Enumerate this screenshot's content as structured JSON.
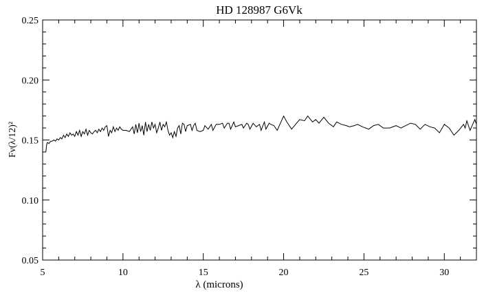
{
  "chart_data": {
    "type": "line",
    "title": "HD 128987 G6Vk",
    "xlabel": "λ (microns)",
    "ylabel": "Fν(λ/12)²",
    "xlim": [
      5,
      32
    ],
    "ylim": [
      0.05,
      0.25
    ],
    "xticks": [
      5,
      10,
      15,
      20,
      25,
      30
    ],
    "xtick_labels": [
      "5",
      "10",
      "15",
      "20",
      "25",
      "30"
    ],
    "yticks": [
      0.05,
      0.1,
      0.15,
      0.2,
      0.25
    ],
    "ytick_labels": [
      "0.05",
      "0.10",
      "0.15",
      "0.20",
      "0.25"
    ],
    "grid": false,
    "line_color": "#000000",
    "x": [
      5.2,
      5.25,
      5.3,
      5.4,
      5.5,
      5.6,
      5.7,
      5.8,
      5.9,
      6.0,
      6.1,
      6.2,
      6.3,
      6.4,
      6.5,
      6.6,
      6.7,
      6.8,
      6.9,
      7.0,
      7.1,
      7.2,
      7.3,
      7.4,
      7.5,
      7.6,
      7.7,
      7.8,
      7.9,
      8.0,
      8.1,
      8.2,
      8.3,
      8.4,
      8.5,
      8.6,
      8.7,
      8.8,
      8.9,
      9.0,
      9.1,
      9.2,
      9.3,
      9.4,
      9.5,
      9.6,
      9.7,
      9.8,
      9.9,
      10.0,
      10.2,
      10.4,
      10.5,
      10.6,
      10.7,
      10.8,
      10.9,
      11.0,
      11.1,
      11.2,
      11.3,
      11.4,
      11.5,
      11.6,
      11.7,
      11.8,
      11.9,
      12.0,
      12.1,
      12.2,
      12.3,
      12.4,
      12.5,
      12.6,
      12.7,
      12.8,
      12.9,
      13.0,
      13.1,
      13.2,
      13.3,
      13.4,
      13.5,
      13.6,
      13.7,
      13.8,
      13.9,
      14.0,
      14.2,
      14.3,
      14.4,
      14.5,
      14.6,
      14.8,
      15.0,
      15.1,
      15.3,
      15.5,
      15.6,
      15.8,
      16.0,
      16.2,
      16.3,
      16.5,
      16.6,
      16.7,
      16.9,
      17.0,
      17.2,
      17.4,
      17.5,
      17.7,
      17.8,
      17.9,
      18.1,
      18.3,
      18.5,
      18.6,
      18.8,
      18.9,
      19.1,
      19.2,
      19.4,
      19.6,
      19.8,
      20.0,
      20.2,
      20.5,
      20.8,
      21.0,
      21.3,
      21.5,
      21.8,
      22.0,
      22.2,
      22.5,
      22.8,
      23.1,
      23.3,
      23.6,
      23.9,
      24.1,
      24.4,
      24.6,
      24.9,
      25.3,
      25.6,
      25.9,
      26.2,
      26.6,
      27.0,
      27.3,
      27.6,
      27.9,
      28.2,
      28.5,
      28.8,
      29.1,
      29.4,
      29.7,
      30.0,
      30.3,
      30.6,
      30.9,
      31.2,
      31.3,
      31.4,
      31.6,
      31.8,
      31.9,
      32.0
    ],
    "y": [
      0.14,
      0.146,
      0.148,
      0.147,
      0.149,
      0.149,
      0.15,
      0.149,
      0.151,
      0.15,
      0.152,
      0.151,
      0.154,
      0.152,
      0.155,
      0.153,
      0.156,
      0.154,
      0.155,
      0.153,
      0.157,
      0.154,
      0.158,
      0.153,
      0.157,
      0.155,
      0.159,
      0.154,
      0.158,
      0.156,
      0.155,
      0.157,
      0.158,
      0.156,
      0.159,
      0.157,
      0.16,
      0.158,
      0.161,
      0.162,
      0.153,
      0.158,
      0.156,
      0.161,
      0.157,
      0.16,
      0.158,
      0.161,
      0.159,
      0.158,
      0.158,
      0.157,
      0.159,
      0.161,
      0.155,
      0.163,
      0.156,
      0.164,
      0.157,
      0.162,
      0.154,
      0.165,
      0.157,
      0.163,
      0.158,
      0.165,
      0.16,
      0.163,
      0.156,
      0.16,
      0.165,
      0.158,
      0.163,
      0.161,
      0.165,
      0.158,
      0.154,
      0.156,
      0.152,
      0.157,
      0.153,
      0.16,
      0.162,
      0.155,
      0.164,
      0.163,
      0.157,
      0.162,
      0.163,
      0.158,
      0.162,
      0.164,
      0.158,
      0.157,
      0.158,
      0.162,
      0.159,
      0.163,
      0.158,
      0.163,
      0.163,
      0.164,
      0.16,
      0.164,
      0.164,
      0.159,
      0.165,
      0.161,
      0.162,
      0.163,
      0.16,
      0.164,
      0.163,
      0.159,
      0.164,
      0.161,
      0.163,
      0.158,
      0.165,
      0.159,
      0.164,
      0.163,
      0.162,
      0.158,
      0.164,
      0.17,
      0.165,
      0.159,
      0.164,
      0.167,
      0.166,
      0.17,
      0.165,
      0.167,
      0.164,
      0.169,
      0.164,
      0.161,
      0.165,
      0.163,
      0.162,
      0.161,
      0.162,
      0.163,
      0.161,
      0.159,
      0.162,
      0.163,
      0.16,
      0.16,
      0.162,
      0.16,
      0.162,
      0.164,
      0.163,
      0.159,
      0.163,
      0.161,
      0.16,
      0.156,
      0.163,
      0.16,
      0.154,
      0.158,
      0.163,
      0.16,
      0.166,
      0.158,
      0.164,
      0.167,
      0.163
    ]
  }
}
